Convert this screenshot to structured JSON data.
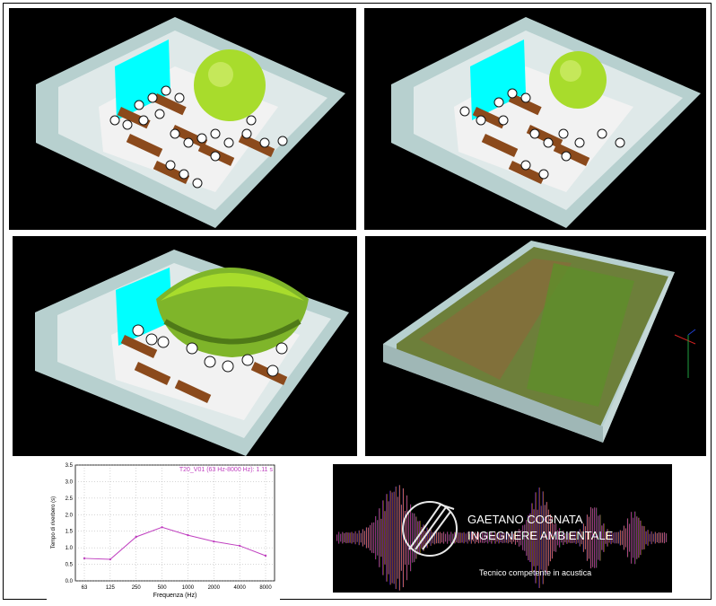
{
  "chart_data": {
    "type": "line",
    "title": "T20_V01 (63 Hz-8000 Hz): 1.11 s",
    "xlabel": "Frequenza (Hz)",
    "ylabel": "Tempo di riverbero (s)",
    "categories": [
      "63",
      "125",
      "250",
      "500",
      "1000",
      "2000",
      "4000",
      "8000"
    ],
    "values": [
      0.68,
      0.65,
      1.33,
      1.62,
      1.38,
      1.19,
      1.06,
      0.76
    ],
    "ylim": [
      0,
      3.5
    ],
    "yticks": [
      "0.0",
      "0.5",
      "1.0",
      "1.5",
      "2.0",
      "2.5",
      "3.0",
      "3.5"
    ],
    "line_color": "#c040c0",
    "grid": true
  },
  "logo": {
    "name_line1": "GAETANO COGNATA",
    "name_line2": "INGEGNERE AMBIENTALE",
    "tagline": "Tecnico competente in acustica"
  },
  "colors": {
    "wall": "#b7d0cf",
    "floor": "#f2f2f2",
    "table": "#8b4a1c",
    "screen": "#00ffff",
    "sphere": "#a8dc2c"
  }
}
